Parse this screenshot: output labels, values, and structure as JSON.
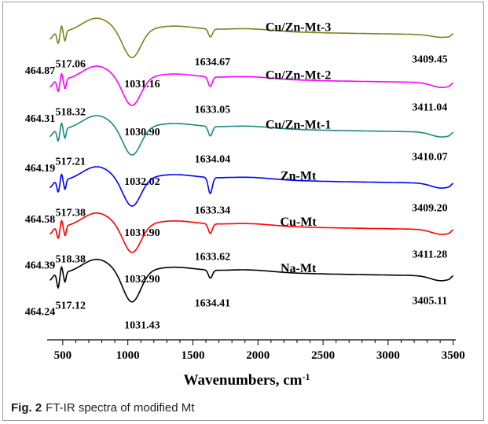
{
  "caption": {
    "label": "Fig. 2",
    "text": "FT-IR spectra of modified Mt"
  },
  "chart_data": {
    "type": "line",
    "title": "",
    "xlabel": "Wavenumbers, cm",
    "xlabel_sup": "-1",
    "ylabel": "",
    "xlim": [
      380,
      3520
    ],
    "xticks": [
      500,
      1000,
      1500,
      2000,
      2500,
      3000,
      3500
    ],
    "ylim": [
      0,
      1
    ],
    "grid": false,
    "legend": "none",
    "series": [
      {
        "name": "Cu/Zn-Mt-3",
        "color": "#808020",
        "baseline": 0.92,
        "peaks": [
          {
            "label": "464.87",
            "x": 464.87,
            "depth": 0.035
          },
          {
            "label": "517.06",
            "x": 517.06,
            "depth": 0.03
          },
          {
            "label": "1031.16",
            "x": 1031.16,
            "depth": 0.085
          },
          {
            "label": "1634.67",
            "x": 1634.67,
            "depth": 0.025
          },
          {
            "label": "3409.45",
            "x": 3409.45,
            "depth": 0.008
          }
        ]
      },
      {
        "name": "Cu/Zn-Mt-2",
        "color": "#ff00ff",
        "baseline": 0.77,
        "peaks": [
          {
            "label": "464.31",
            "x": 464.31,
            "depth": 0.035
          },
          {
            "label": "518.32",
            "x": 518.32,
            "depth": 0.03
          },
          {
            "label": "1030.90",
            "x": 1030.9,
            "depth": 0.085
          },
          {
            "label": "1633.05",
            "x": 1633.05,
            "depth": 0.03
          },
          {
            "label": "3411.04",
            "x": 3411.04,
            "depth": 0.015
          }
        ]
      },
      {
        "name": "Cu/Zn-Mt-1",
        "color": "#1a8a80",
        "baseline": 0.615,
        "peaks": [
          {
            "label": "464.19",
            "x": 464.19,
            "depth": 0.035
          },
          {
            "label": "517.21",
            "x": 517.21,
            "depth": 0.03
          },
          {
            "label": "1032.02",
            "x": 1032.02,
            "depth": 0.085
          },
          {
            "label": "1634.04",
            "x": 1634.04,
            "depth": 0.03
          },
          {
            "label": "3410.07",
            "x": 3410.07,
            "depth": 0.015
          }
        ]
      },
      {
        "name": "Zn-Mt",
        "color": "#0000ff",
        "baseline": 0.455,
        "peaks": [
          {
            "label": "464.58",
            "x": 464.58,
            "depth": 0.035
          },
          {
            "label": "517.38",
            "x": 517.38,
            "depth": 0.03
          },
          {
            "label": "1031.90",
            "x": 1031.9,
            "depth": 0.085
          },
          {
            "label": "1633.34",
            "x": 1633.34,
            "depth": 0.05
          },
          {
            "label": "3409.20",
            "x": 3409.2,
            "depth": 0.015
          }
        ]
      },
      {
        "name": "Cu-Mt",
        "color": "#ff0000",
        "baseline": 0.31,
        "peaks": [
          {
            "label": "464.39",
            "x": 464.39,
            "depth": 0.035
          },
          {
            "label": "518.38",
            "x": 518.38,
            "depth": 0.03
          },
          {
            "label": "1032.90",
            "x": 1032.9,
            "depth": 0.085
          },
          {
            "label": "1633.62",
            "x": 1633.62,
            "depth": 0.03
          },
          {
            "label": "3411.28",
            "x": 3411.28,
            "depth": 0.015
          }
        ]
      },
      {
        "name": "Na-Mt",
        "color": "#000000",
        "baseline": 0.165,
        "peaks": [
          {
            "label": "464.24",
            "x": 464.24,
            "depth": 0.045
          },
          {
            "label": "517.12",
            "x": 517.12,
            "depth": 0.03
          },
          {
            "label": "1031.43",
            "x": 1031.43,
            "depth": 0.095
          },
          {
            "label": "1634.41",
            "x": 1634.41,
            "depth": 0.025
          },
          {
            "label": "3405.11",
            "x": 3405.11,
            "depth": 0.015
          }
        ]
      }
    ]
  }
}
